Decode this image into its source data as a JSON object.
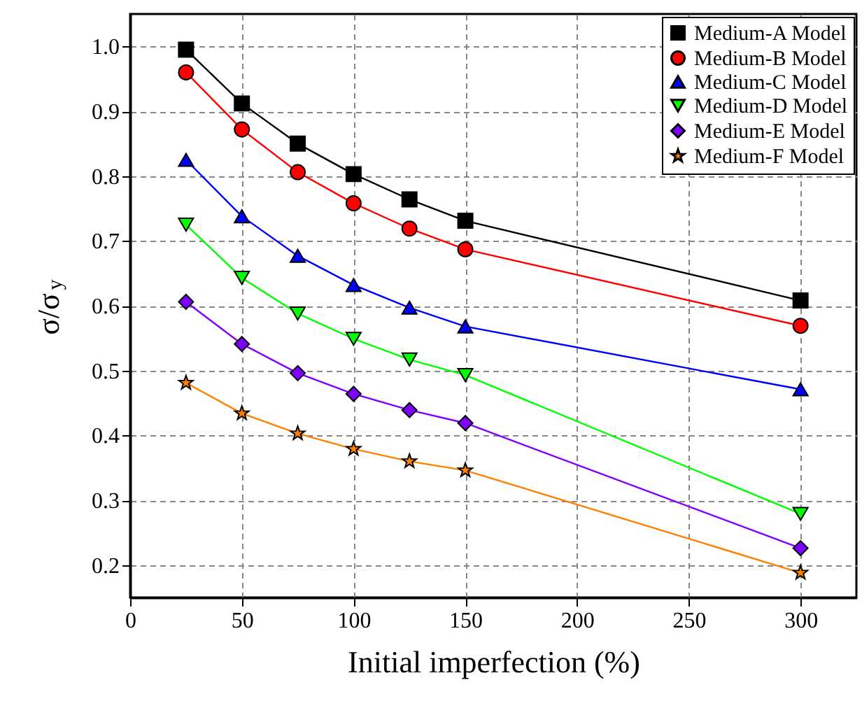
{
  "chart_data": {
    "type": "line",
    "xlabel": "Initial imperfection (%)",
    "ylabel": "σ/σ$_{y}$",
    "x": [
      25,
      50,
      75,
      100,
      125,
      150,
      300
    ],
    "series": [
      {
        "name": "Medium-A Model",
        "color": "#000000",
        "marker": "square",
        "values": [
          0.995,
          0.912,
          0.85,
          0.803,
          0.764,
          0.731,
          0.608
        ]
      },
      {
        "name": "Medium-B Model",
        "color": "#ff0000",
        "marker": "circle",
        "values": [
          0.96,
          0.872,
          0.806,
          0.758,
          0.719,
          0.687,
          0.569
        ]
      },
      {
        "name": "Medium-C Model",
        "color": "#0000ff",
        "marker": "triangle",
        "values": [
          0.825,
          0.738,
          0.677,
          0.632,
          0.597,
          0.568,
          0.471
        ]
      },
      {
        "name": "Medium-D Model",
        "color": "#00ff00",
        "marker": "triangle-down",
        "values": [
          0.725,
          0.643,
          0.588,
          0.549,
          0.517,
          0.493,
          0.279
        ]
      },
      {
        "name": "Medium-E Model",
        "color": "#8000ff",
        "marker": "diamond",
        "values": [
          0.606,
          0.541,
          0.496,
          0.464,
          0.439,
          0.419,
          0.226
        ]
      },
      {
        "name": "Medium-F Model",
        "color": "#ff8000",
        "marker": "star",
        "values": [
          0.481,
          0.434,
          0.403,
          0.379,
          0.36,
          0.346,
          0.188
        ]
      }
    ],
    "xlim": [
      0,
      325
    ],
    "xticks": [
      0,
      50,
      100,
      150,
      200,
      250,
      300
    ],
    "ylim": [
      0.15,
      1.05
    ],
    "yticks": [
      0.2,
      0.3,
      0.4,
      0.5,
      0.6,
      0.7,
      0.8,
      0.9,
      {
        "value": 1,
        "label": "1.0"
      }
    ],
    "grid": true,
    "legend": "top right",
    "line_style": "solid"
  }
}
